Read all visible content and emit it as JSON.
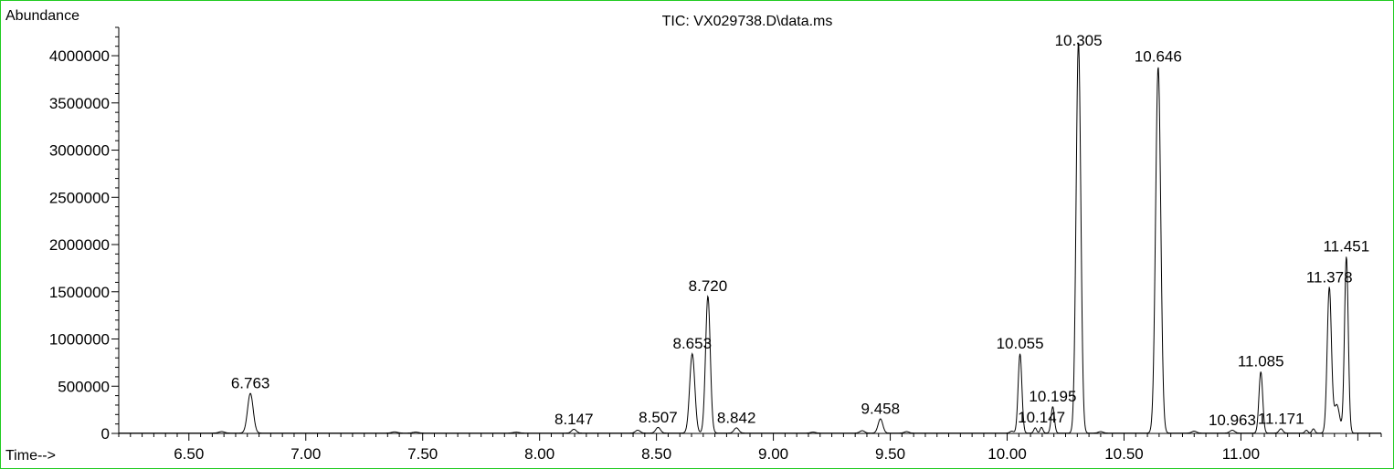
{
  "chart_data": {
    "type": "line",
    "title": "TIC: VX029738.D\\data.ms",
    "xlabel": "Time-->",
    "ylabel": "Abundance",
    "xlim": [
      6.2,
      11.6
    ],
    "ylim": [
      0,
      4300000
    ],
    "x_ticks": [
      "6.50",
      "7.00",
      "7.50",
      "8.00",
      "8.50",
      "9.00",
      "9.50",
      "10.00",
      "10.50",
      "11.00"
    ],
    "y_ticks": [
      "0",
      "500000",
      "1000000",
      "1500000",
      "2000000",
      "2500000",
      "3000000",
      "3500000",
      "4000000"
    ],
    "grid": false,
    "series": [
      {
        "peaks": [
          {
            "rt": 6.64,
            "h": 15000,
            "w": 0.012
          },
          {
            "rt": 6.763,
            "h": 420000,
            "w": 0.012
          },
          {
            "rt": 7.38,
            "h": 12000,
            "w": 0.012
          },
          {
            "rt": 7.47,
            "h": 10000,
            "w": 0.012
          },
          {
            "rt": 7.9,
            "h": 9000,
            "w": 0.012
          },
          {
            "rt": 8.147,
            "h": 40000,
            "w": 0.01
          },
          {
            "rt": 8.42,
            "h": 30000,
            "w": 0.01
          },
          {
            "rt": 8.507,
            "h": 60000,
            "w": 0.01
          },
          {
            "rt": 8.653,
            "h": 840000,
            "w": 0.011
          },
          {
            "rt": 8.72,
            "h": 1450000,
            "w": 0.01
          },
          {
            "rt": 8.842,
            "h": 55000,
            "w": 0.01
          },
          {
            "rt": 9.17,
            "h": 10000,
            "w": 0.01
          },
          {
            "rt": 9.38,
            "h": 25000,
            "w": 0.01
          },
          {
            "rt": 9.458,
            "h": 150000,
            "w": 0.01
          },
          {
            "rt": 9.57,
            "h": 15000,
            "w": 0.01
          },
          {
            "rt": 10.02,
            "h": 20000,
            "w": 0.008
          },
          {
            "rt": 10.055,
            "h": 840000,
            "w": 0.008
          },
          {
            "rt": 10.12,
            "h": 55000,
            "w": 0.006
          },
          {
            "rt": 10.147,
            "h": 60000,
            "w": 0.006
          },
          {
            "rt": 10.195,
            "h": 280000,
            "w": 0.007
          },
          {
            "rt": 10.305,
            "h": 4150000,
            "w": 0.01
          },
          {
            "rt": 10.4,
            "h": 15000,
            "w": 0.01
          },
          {
            "rt": 10.646,
            "h": 3880000,
            "w": 0.011
          },
          {
            "rt": 10.8,
            "h": 20000,
            "w": 0.01
          },
          {
            "rt": 10.963,
            "h": 30000,
            "w": 0.01
          },
          {
            "rt": 11.085,
            "h": 650000,
            "w": 0.008
          },
          {
            "rt": 11.171,
            "h": 45000,
            "w": 0.008
          },
          {
            "rt": 11.28,
            "h": 30000,
            "w": 0.006
          },
          {
            "rt": 11.31,
            "h": 45000,
            "w": 0.006
          },
          {
            "rt": 11.378,
            "h": 1540000,
            "w": 0.009
          },
          {
            "rt": 11.41,
            "h": 300000,
            "w": 0.012
          },
          {
            "rt": 11.451,
            "h": 1870000,
            "w": 0.008
          }
        ]
      }
    ],
    "peak_labels": [
      {
        "text": "6.763",
        "rt": 6.763,
        "h": 420000
      },
      {
        "text": "8.147",
        "rt": 8.147,
        "h": 40000
      },
      {
        "text": "8.507",
        "rt": 8.507,
        "h": 60000
      },
      {
        "text": "8.653",
        "rt": 8.653,
        "h": 840000
      },
      {
        "text": "8.720",
        "rt": 8.72,
        "h": 1450000
      },
      {
        "text": "8.842",
        "rt": 8.842,
        "h": 55000
      },
      {
        "text": "9.458",
        "rt": 9.458,
        "h": 150000
      },
      {
        "text": "10.055",
        "rt": 10.055,
        "h": 840000
      },
      {
        "text": "10.147",
        "rt": 10.147,
        "h": 60000
      },
      {
        "text": "10.195",
        "rt": 10.195,
        "h": 280000
      },
      {
        "text": "10.305",
        "rt": 10.305,
        "h": 4150000
      },
      {
        "text": "10.646",
        "rt": 10.646,
        "h": 3880000
      },
      {
        "text": "10.963",
        "rt": 10.963,
        "h": 30000
      },
      {
        "text": "11.085",
        "rt": 11.085,
        "h": 650000
      },
      {
        "text": "11.171",
        "rt": 11.171,
        "h": 45000
      },
      {
        "text": "11.378",
        "rt": 11.378,
        "h": 1540000
      },
      {
        "text": "11.451",
        "rt": 11.451,
        "h": 1870000
      }
    ]
  }
}
